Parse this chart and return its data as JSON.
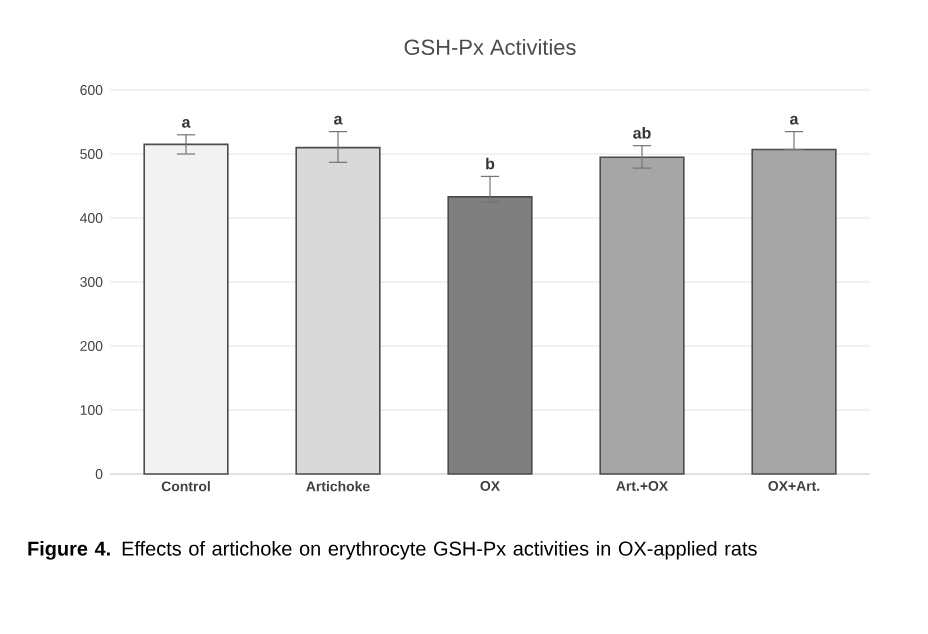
{
  "chart_data": {
    "type": "bar",
    "title": "GSH-Px Activities",
    "categories": [
      "Control",
      "Artichoke",
      "OX",
      "Art.+OX",
      "OX+Art."
    ],
    "values": [
      515,
      510,
      433,
      495,
      507
    ],
    "colors": [
      "#f2f2f2",
      "#d9d9d9",
      "#7f7f7f",
      "#a6a6a6",
      "#a6a6a6"
    ],
    "errors": [
      [
        500,
        530
      ],
      [
        487,
        535
      ],
      [
        425,
        465
      ],
      [
        478,
        513
      ],
      [
        507,
        535
      ]
    ],
    "ylim": [
      0,
      600
    ],
    "yticks": [
      0,
      100,
      200,
      300,
      400,
      500,
      600
    ],
    "grid": "y",
    "annotations": [
      {
        "text": "a",
        "x": "Control",
        "y": 530
      },
      {
        "text": "a",
        "x": "Artichoke",
        "y": 535
      },
      {
        "text": "b",
        "x": "OX",
        "y": 465
      },
      {
        "text": "ab",
        "x": "Art.+OX",
        "y": 513
      },
      {
        "text": "a",
        "x": "OX+Art.",
        "y": 535
      },
      "**Figure 4.** Effects of artichoke on erythrocyte GSH-Px activities in OX-applied rats"
    ]
  }
}
